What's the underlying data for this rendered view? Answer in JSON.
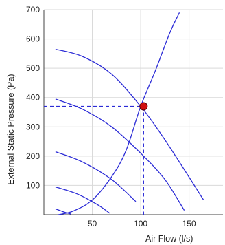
{
  "chart_data": {
    "type": "line",
    "title": "",
    "xlabel": "Air Flow (l/s)",
    "ylabel": "External Static Pressure (Pa)",
    "xlim": [
      0,
      185
    ],
    "ylim": [
      0,
      700
    ],
    "xticks": [
      "50",
      "100",
      "150"
    ],
    "yticks": [
      "100",
      "200",
      "300",
      "400",
      "500",
      "600",
      "700"
    ],
    "grid": true,
    "series": [
      {
        "kind": "fan-curve",
        "x": [
          12,
          40,
          70,
          100,
          120,
          140,
          165
        ],
        "y": [
          565,
          540,
          480,
          370,
          280,
          180,
          50
        ]
      },
      {
        "kind": "fan-curve",
        "x": [
          12,
          40,
          70,
          100,
          125,
          145
        ],
        "y": [
          395,
          360,
          300,
          210,
          120,
          15
        ]
      },
      {
        "kind": "fan-curve",
        "x": [
          12,
          40,
          70,
          95
        ],
        "y": [
          215,
          180,
          120,
          45
        ]
      },
      {
        "kind": "fan-curve",
        "x": [
          12,
          35,
          55,
          68
        ],
        "y": [
          95,
          70,
          35,
          5
        ]
      },
      {
        "kind": "fan-curve",
        "x": [
          12,
          20,
          28
        ],
        "y": [
          20,
          10,
          2
        ]
      },
      {
        "kind": "system-curve",
        "x": [
          15,
          30,
          50,
          70,
          85,
          100,
          115,
          130,
          140
        ],
        "y": [
          0,
          12,
          50,
          130,
          220,
          370,
          490,
          620,
          690
        ]
      }
    ],
    "operating_point": {
      "x": 103,
      "y": 370,
      "color": "#d01010"
    },
    "colors": {
      "curve": "#2b2bd6",
      "guide": "#2b2bd6",
      "grid": "#d9d9d9",
      "axis": "#444444"
    }
  }
}
